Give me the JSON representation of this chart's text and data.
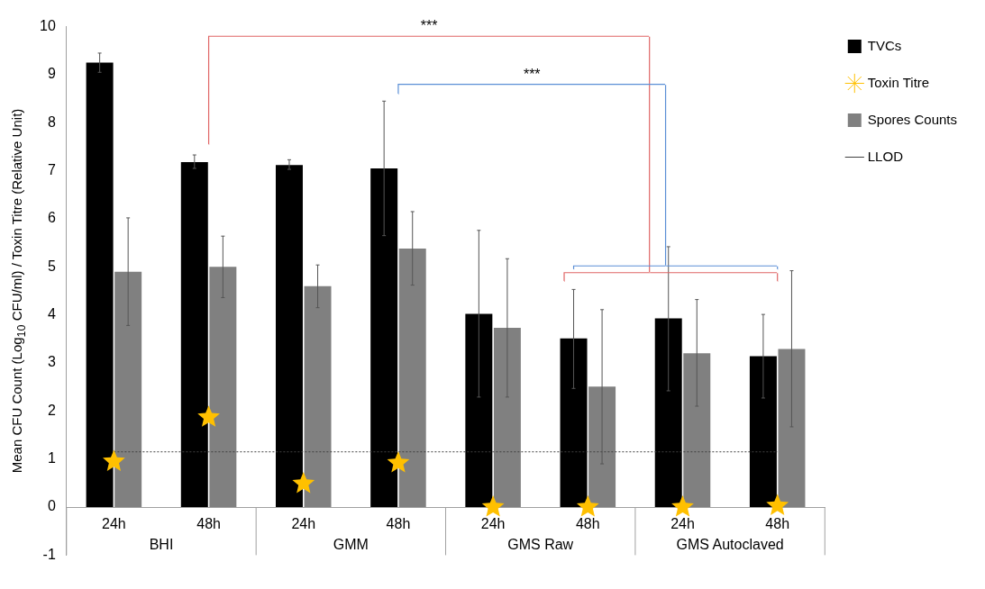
{
  "chart_data": {
    "type": "bar",
    "ylabel": "Mean CFU Count (Log$_{10}$ CFU/ml) / Toxin Titre (Relative Unit)",
    "categories": [
      "24h",
      "48h",
      "24h",
      "48h",
      "24h",
      "48h",
      "24h",
      "48h"
    ],
    "series": [
      {
        "name": "TVCs",
        "color": "#000000",
        "values": [
          9.25,
          7.18,
          7.12,
          7.05,
          4.02,
          3.51,
          3.93,
          3.14
        ],
        "errors": [
          [
            9.05,
            9.45
          ],
          [
            7.05,
            7.33
          ],
          [
            7.03,
            7.23
          ],
          [
            5.65,
            8.45
          ],
          [
            2.29,
            5.76
          ],
          [
            2.47,
            4.53
          ],
          [
            2.42,
            5.42
          ],
          [
            2.27,
            4.01
          ]
        ]
      },
      {
        "name": "Toxin Titre",
        "type": "scatter",
        "color": "#ffc000",
        "marker": "star",
        "values": [
          0.95,
          1.87,
          0.49,
          0.92,
          0,
          0,
          0,
          0.03
        ]
      },
      {
        "name": "Spores Counts",
        "color": "#808080",
        "values": [
          4.9,
          5.0,
          4.6,
          5.38,
          3.73,
          2.51,
          3.2,
          3.29
        ],
        "errors": [
          [
            3.78,
            6.02
          ],
          [
            4.36,
            5.64
          ],
          [
            4.15,
            5.04
          ],
          [
            4.62,
            6.15
          ],
          [
            2.29,
            5.17
          ],
          [
            0.9,
            4.11
          ],
          [
            2.1,
            4.32
          ],
          [
            1.67,
            4.92
          ]
        ]
      }
    ],
    "ref_lines": [
      {
        "axis": "y",
        "value": 1.15,
        "label": "LLOD",
        "color": "#404040",
        "line_style": "dotted"
      }
    ],
    "annotations": [
      "BHI",
      "GMM",
      "GMS Raw",
      "GMS Autoclaved",
      "***",
      "***"
    ],
    "ylim": [
      -1,
      10
    ],
    "yticks": [
      -1,
      0,
      1,
      2,
      3,
      4,
      5,
      6,
      7,
      8,
      9,
      10
    ],
    "grid": false,
    "legend": "top right"
  }
}
